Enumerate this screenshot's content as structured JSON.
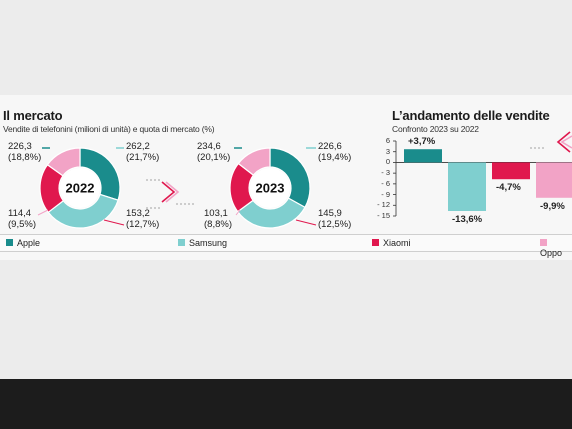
{
  "panel_left": {
    "title": "Il mercato",
    "subtitle": "Vendite di telefonini (milioni di unità) e quota di mercato (%)"
  },
  "panel_right": {
    "title": "L’andamento delle vendite",
    "subtitle": "Confronto 2023 su 2022"
  },
  "colors": {
    "Apple": "#1a8c8c",
    "Samsung": "#7fcfcf",
    "Xiaomi": "#e0184e",
    "Oppo": "#f2a3c6"
  },
  "legend": [
    "Apple",
    "Samsung",
    "Xiaomi",
    "Oppo"
  ],
  "chart_data": [
    {
      "type": "pie",
      "center_label": "2022",
      "slices": [
        {
          "name": "Apple",
          "value": 226.3,
          "share": "18,8%",
          "value_text": "226,3",
          "share_text": "(18,8%)"
        },
        {
          "name": "Samsung",
          "value": 262.2,
          "share": "21,7%",
          "value_text": "262,2",
          "share_text": "(21,7%)"
        },
        {
          "name": "Xiaomi",
          "value": 153.2,
          "share": "12,7%",
          "value_text": "153,2",
          "share_text": "(12,7%)"
        },
        {
          "name": "Oppo",
          "value": 114.4,
          "share": "9,5%",
          "value_text": "114,4",
          "share_text": "(9,5%)"
        }
      ]
    },
    {
      "type": "pie",
      "center_label": "2023",
      "slices": [
        {
          "name": "Apple",
          "value": 234.6,
          "share": "20,1%",
          "value_text": "234,6",
          "share_text": "(20,1%)"
        },
        {
          "name": "Samsung",
          "value": 226.6,
          "share": "19,4%",
          "value_text": "226,6",
          "share_text": "(19,4%)"
        },
        {
          "name": "Xiaomi",
          "value": 145.9,
          "share": "12,5%",
          "value_text": "145,9",
          "share_text": "(12,5%)"
        },
        {
          "name": "Oppo",
          "value": 103.1,
          "share": "8,8%",
          "value_text": "103,1",
          "share_text": "(8,8%)"
        }
      ]
    },
    {
      "type": "bar",
      "categories": [
        "Apple",
        "Samsung",
        "Xiaomi",
        "Oppo"
      ],
      "values": [
        3.7,
        -13.6,
        -4.7,
        -9.9
      ],
      "value_labels": [
        "+3,7%",
        "-13,6%",
        "-4,7%",
        "-9,9%"
      ],
      "ylim": [
        -15,
        6
      ],
      "yticks": [
        6,
        3,
        0,
        -3,
        -6,
        -9,
        -12,
        -15
      ],
      "ytick_labels": [
        "6",
        "3",
        "0",
        "- 3",
        "- 6",
        "- 9",
        "- 12",
        "- 15"
      ]
    }
  ]
}
